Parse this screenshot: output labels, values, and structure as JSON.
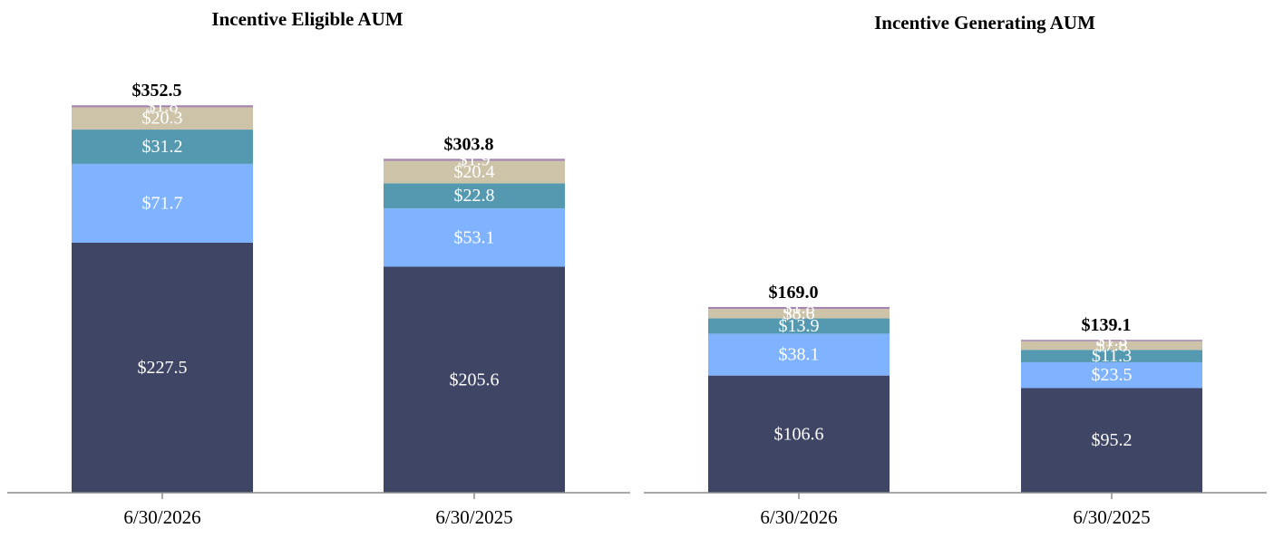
{
  "colors": {
    "segment_1": "#3f4565",
    "segment_2": "#7fb3ff",
    "segment_3": "#5599b0",
    "segment_4": "#cdc3a8",
    "segment_5": "#a585b0",
    "axis": "#8c8c8c"
  },
  "chart_data": [
    {
      "type": "bar",
      "stacked": true,
      "title": "Incentive Eligible AUM",
      "categories": [
        "6/30/2026",
        "6/30/2025"
      ],
      "totals": [
        "$352.5",
        "$303.8"
      ],
      "series": [
        {
          "values": [
            227.5,
            205.6
          ],
          "labels": [
            "$227.5",
            "$205.6"
          ]
        },
        {
          "values": [
            71.7,
            53.1
          ],
          "labels": [
            "$71.7",
            "$53.1"
          ]
        },
        {
          "values": [
            31.2,
            22.8
          ],
          "labels": [
            "$31.2",
            "$22.8"
          ]
        },
        {
          "values": [
            20.3,
            20.4
          ],
          "labels": [
            "$20.3",
            "$20.4"
          ]
        },
        {
          "values": [
            1.8,
            1.9
          ],
          "labels": [
            "$1.8",
            "$1.9"
          ]
        }
      ],
      "xlabel": "",
      "ylabel": "",
      "grid": false
    },
    {
      "type": "bar",
      "stacked": true,
      "title": "Incentive Generating AUM",
      "categories": [
        "6/30/2026",
        "6/30/2025"
      ],
      "totals": [
        "$169.0",
        "$139.1"
      ],
      "series": [
        {
          "values": [
            106.6,
            95.2
          ],
          "labels": [
            "$106.6",
            "$95.2"
          ]
        },
        {
          "values": [
            38.1,
            23.5
          ],
          "labels": [
            "$38.1",
            "$23.5"
          ]
        },
        {
          "values": [
            13.9,
            11.3
          ],
          "labels": [
            "$13.9",
            "$11.3"
          ]
        },
        {
          "values": [
            8.6,
            7.8
          ],
          "labels": [
            "$8.6",
            "$7.8"
          ]
        },
        {
          "values": [
            1.8,
            1.3
          ],
          "labels": [
            "$1.8",
            "$1.3"
          ]
        }
      ],
      "xlabel": "",
      "ylabel": "",
      "grid": false
    }
  ]
}
